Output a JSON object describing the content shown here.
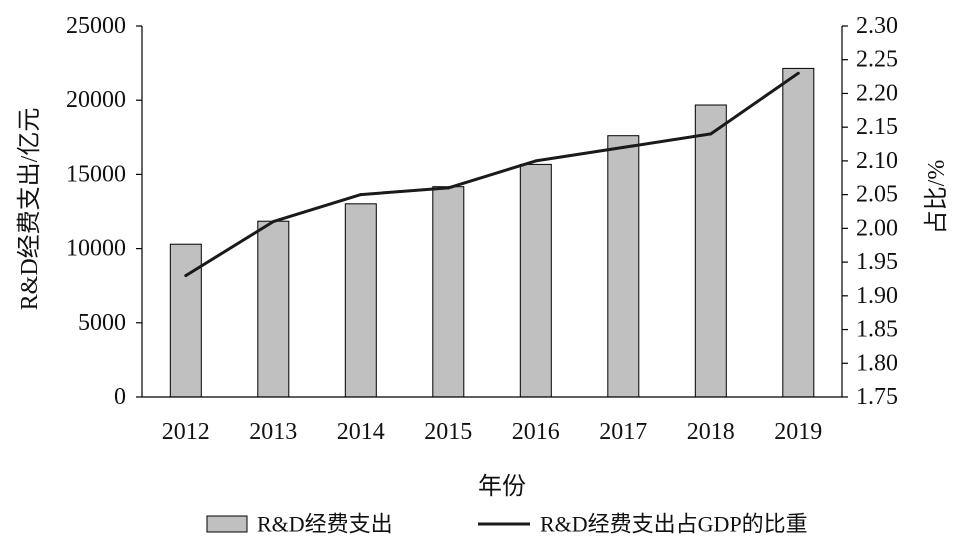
{
  "chart_data": {
    "type": "bar",
    "categories": [
      "2012",
      "2013",
      "2014",
      "2015",
      "2016",
      "2017",
      "2018",
      "2019"
    ],
    "series": [
      {
        "name": "R&D经费支出",
        "type": "bar",
        "axis": "left",
        "color": "#c0c0c0",
        "values": [
          10298,
          11847,
          13016,
          14170,
          15677,
          17606,
          19678,
          22144
        ]
      },
      {
        "name": "R&D经费支出占GDP的比重",
        "type": "line",
        "axis": "right",
        "color": "#1a1a1a",
        "values": [
          1.93,
          2.01,
          2.05,
          2.06,
          2.1,
          2.12,
          2.14,
          2.23
        ]
      }
    ],
    "xlabel": "年份",
    "ylabel": "R&D经费支出/亿元",
    "y2label": "占比/%",
    "ylim": [
      0,
      25000
    ],
    "y2lim": [
      1.75,
      2.3
    ],
    "y_ticks": [
      "0",
      "5000",
      "10000",
      "15000",
      "20000",
      "25000"
    ],
    "y2_ticks": [
      "1.75",
      "1.80",
      "1.85",
      "1.90",
      "1.95",
      "2.00",
      "2.05",
      "2.10",
      "2.15",
      "2.20",
      "2.25",
      "2.30"
    ],
    "grid": false,
    "legend": "bottom"
  }
}
